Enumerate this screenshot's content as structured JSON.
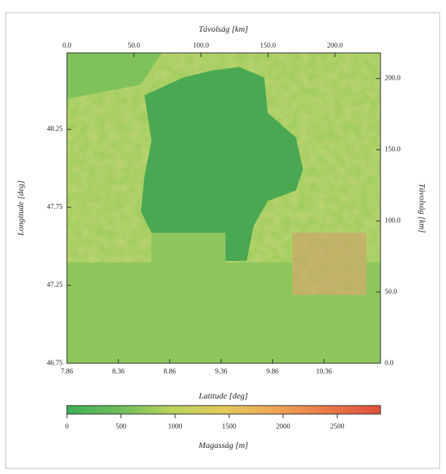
{
  "chart_data": {
    "type": "heatmap",
    "xlabel": "Latitude [deg]",
    "ylabel": "Longitude [deg]",
    "x2label": "Távolság [km]",
    "y2label": "Távolság [km]",
    "xlim": [
      7.86,
      10.91
    ],
    "xticks": [
      7.86,
      8.36,
      8.86,
      9.36,
      9.86,
      10.36
    ],
    "x2lim": [
      0,
      234
    ],
    "x2ticks": [
      {
        "value": 0,
        "label": "0.0"
      },
      {
        "value": 50,
        "label": "50.0"
      },
      {
        "value": 100,
        "label": "100.0"
      },
      {
        "value": 150,
        "label": "150.0"
      },
      {
        "value": 200,
        "label": "200.0"
      }
    ],
    "ylim": [
      46.75,
      48.74
    ],
    "yticks": [
      46.75,
      47.25,
      47.75,
      48.25
    ],
    "y2lim": [
      0,
      218
    ],
    "y2ticks": [
      {
        "value": 0,
        "label": "0.0"
      },
      {
        "value": 50,
        "label": "50.0"
      },
      {
        "value": 100,
        "label": "100.0"
      },
      {
        "value": 150,
        "label": "150.0"
      },
      {
        "value": 200,
        "label": "200.0"
      }
    ],
    "colorbar": {
      "label": "Magasság [m]",
      "lim": [
        0,
        2900
      ],
      "ticks": [
        0,
        500,
        1000,
        1500,
        2000,
        2500
      ],
      "colors": [
        "#3fae56",
        "#6cbd5a",
        "#b9d35c",
        "#e3c95a",
        "#eea456",
        "#e8784a",
        "#e0503c"
      ]
    }
  }
}
